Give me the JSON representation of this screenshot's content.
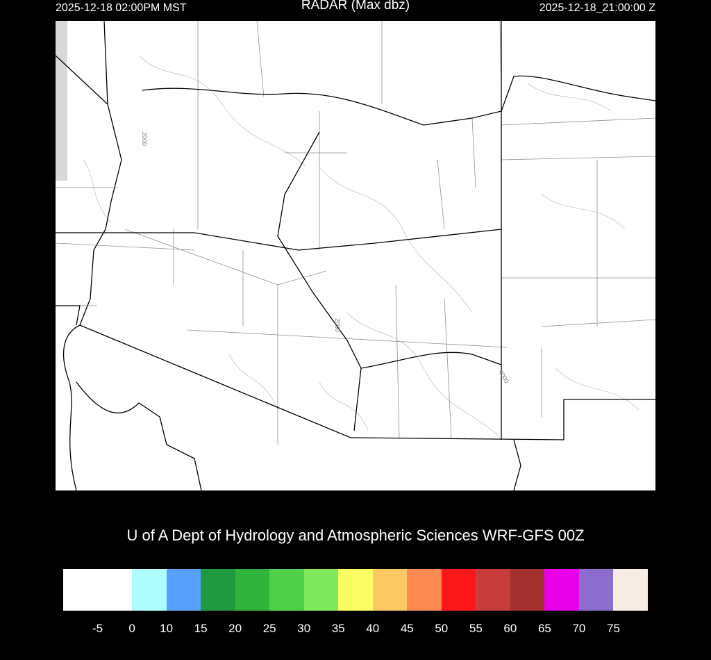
{
  "header": {
    "local_time": "2025-12-18 02:00PM MST",
    "title": "RADAR (Max dbz)",
    "utc_time": "2025-12-18_21:00:00 Z"
  },
  "map": {
    "contour_labels": [
      "2000",
      "2000",
      "4000"
    ],
    "background": "#ffffff",
    "border_color": "#000000",
    "contour_color": "#808080"
  },
  "credit": "U of A Dept of Hydrology and Atmospheric Sciences WRF-GFS 00Z",
  "colorbar": {
    "colors": [
      "#ffffff",
      "#aefcfc",
      "#58a0fc",
      "#1f9a40",
      "#30b43c",
      "#50d048",
      "#80e85c",
      "#fcfc64",
      "#fcc864",
      "#fc8a50",
      "#fc1818",
      "#c83c3c",
      "#a43030",
      "#e800e8",
      "#8c6ccc",
      "#f8ede4"
    ],
    "labels": [
      "-5",
      "0",
      "10",
      "15",
      "20",
      "25",
      "30",
      "35",
      "40",
      "45",
      "50",
      "55",
      "60",
      "65",
      "70",
      "75"
    ]
  }
}
